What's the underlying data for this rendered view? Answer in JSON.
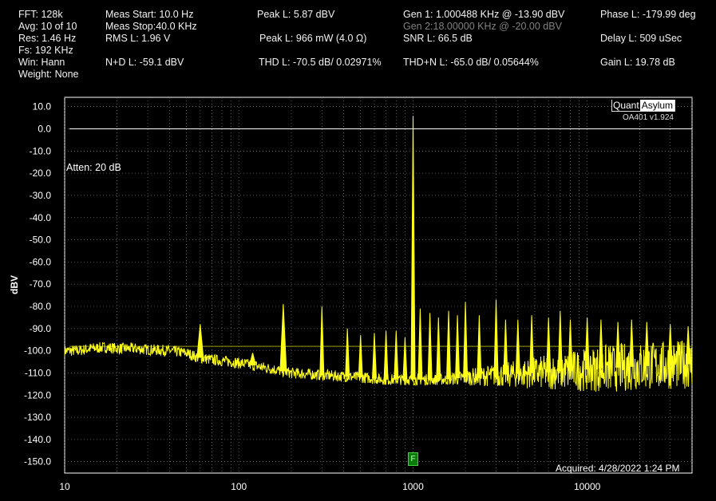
{
  "header": {
    "col1": [
      "FFT:  128k",
      "Avg: 10 of 10",
      "Res: 1.46 Hz",
      "Fs: 192 KHz",
      "Win: Hann",
      "Weight: None"
    ],
    "col2": [
      "Meas Start: 10.0 Hz",
      "Meas Stop:40.0 KHz",
      "RMS L: 1.96 V",
      "N+D L: -59.1 dBV"
    ],
    "col3": [
      "Peak L: 5.87 dBV",
      "Peak L: 966 mW (4.0 Ω)",
      "THD L: -70.5 dB/ 0.02971%"
    ],
    "col4": [
      "Gen 1: 1.000488 KHz @ -13.90  dBV",
      "Gen 2:18.00000 KHz @ -20.00  dBV",
      "SNR L: 66.5 dB",
      "THD+N L: -65.0 dB/ 0.05644%"
    ],
    "col5": [
      "Phase L: -179.99 deg",
      "Delay L: 509 uSec",
      "Gain L: 19.78 dB"
    ]
  },
  "logo": {
    "part1": "Quant",
    "part2": "Asylum",
    "version": "OA401 v1.924"
  },
  "annotations": {
    "atten": "Atten: 20 dB",
    "acquired": "Acquired: 4/28/2022  1:24 PM",
    "marker": "F"
  },
  "colors": {
    "trace": "#ffff1a",
    "grid": "#8a8a8a",
    "background": "#000000",
    "axis": "#ffffff",
    "marker": "#0a7a0a"
  },
  "chart_data": {
    "type": "line",
    "xlabel": "",
    "ylabel": "dBV",
    "x_scale": "log",
    "xlim": [
      10,
      40000
    ],
    "ylim": [
      -155,
      15
    ],
    "x_ticks": [
      "10",
      "100",
      "1000",
      "10000"
    ],
    "y_ticks": [
      "10.0",
      "0.0",
      "-10.0",
      "-20.0",
      "-30.0",
      "-40.0",
      "-50.0",
      "-60.0",
      "-70.0",
      "-80.0",
      "-90.0",
      "-100.0",
      "-110.0",
      "-120.0",
      "-130.0",
      "-140.0",
      "-150.0"
    ],
    "reference_lines": [
      {
        "y": 0.0
      },
      {
        "y": -98.0
      }
    ],
    "noise_floor": [
      [
        10,
        -100
      ],
      [
        12,
        -100
      ],
      [
        14,
        -99
      ],
      [
        17,
        -98.5
      ],
      [
        20,
        -99
      ],
      [
        25,
        -99
      ],
      [
        30,
        -99.5
      ],
      [
        40,
        -100
      ],
      [
        50,
        -101
      ],
      [
        58,
        -103
      ],
      [
        70,
        -104
      ],
      [
        90,
        -105
      ],
      [
        110,
        -106
      ],
      [
        150,
        -108
      ],
      [
        200,
        -110
      ],
      [
        300,
        -111
      ],
      [
        500,
        -112
      ],
      [
        700,
        -113
      ],
      [
        1000,
        -113
      ],
      [
        1500,
        -113
      ],
      [
        2000,
        -112
      ],
      [
        3000,
        -111
      ],
      [
        5000,
        -110
      ],
      [
        8000,
        -109
      ],
      [
        12000,
        -108
      ],
      [
        20000,
        -107
      ],
      [
        40000,
        -106
      ]
    ],
    "peaks": [
      [
        60,
        -88
      ],
      [
        120,
        -101
      ],
      [
        180,
        -79
      ],
      [
        300,
        -80
      ],
      [
        420,
        -90
      ],
      [
        500,
        -93
      ],
      [
        600,
        -92
      ],
      [
        700,
        -91
      ],
      [
        800,
        -91
      ],
      [
        900,
        -94
      ],
      [
        1000.488,
        5.87
      ],
      [
        1100,
        -81
      ],
      [
        1250,
        -83
      ],
      [
        1400,
        -85
      ],
      [
        1600,
        -82
      ],
      [
        1800,
        -84
      ],
      [
        2000,
        -78
      ],
      [
        2400,
        -84
      ],
      [
        3000,
        -77
      ],
      [
        3400,
        -86
      ],
      [
        4000,
        -86
      ],
      [
        4800,
        -84
      ],
      [
        6000,
        -85
      ],
      [
        7000,
        -82
      ],
      [
        8000,
        -86
      ],
      [
        10000,
        -85
      ],
      [
        12000,
        -86
      ],
      [
        15000,
        -87
      ],
      [
        18000,
        -86
      ],
      [
        22000,
        -87
      ],
      [
        30000,
        -88
      ],
      [
        38000,
        -89
      ]
    ]
  }
}
